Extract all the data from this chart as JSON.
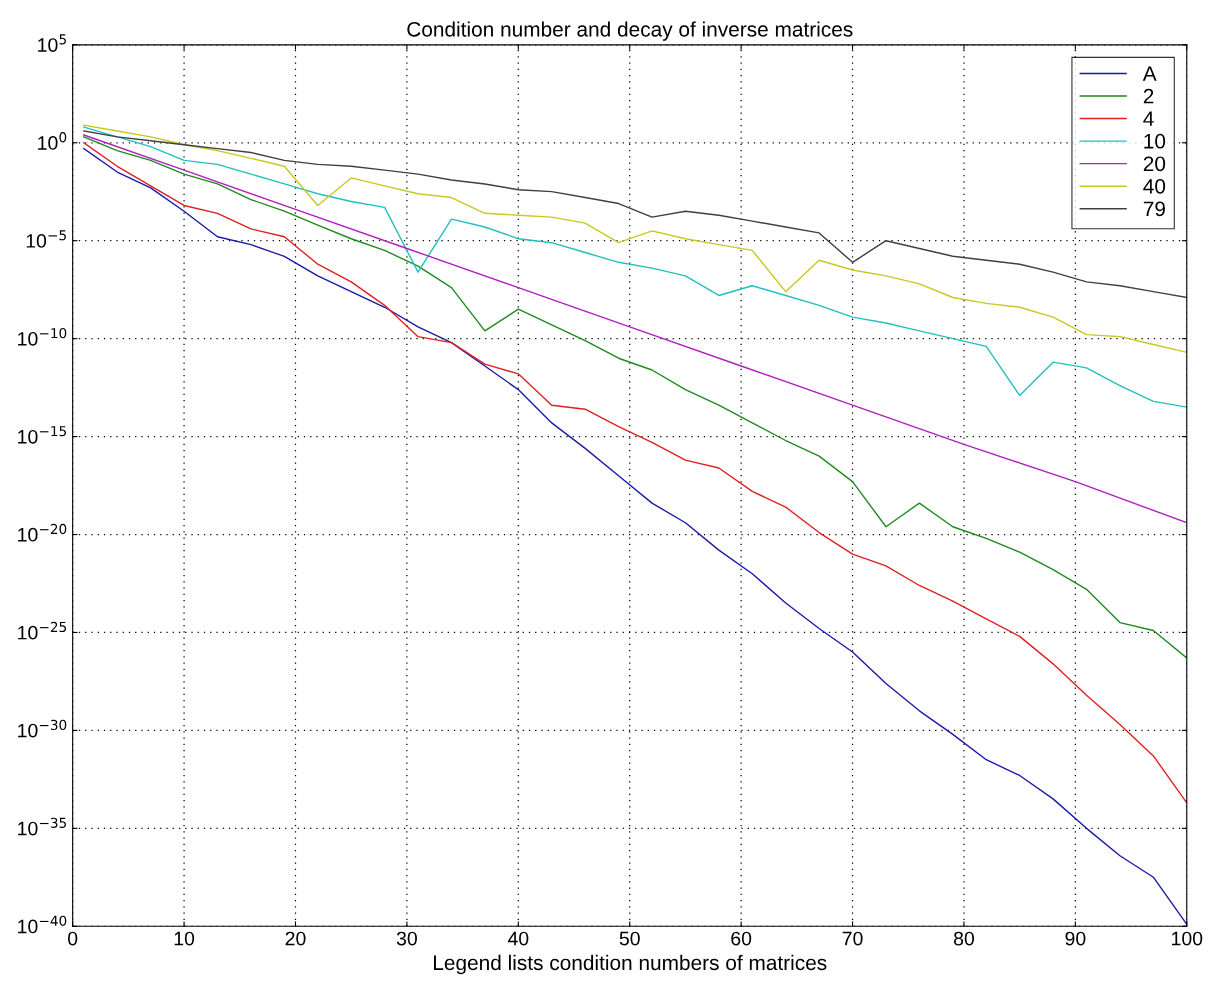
{
  "chart_data": {
    "type": "line",
    "title": "Condition number and decay of inverse matrices",
    "xlabel": "Legend lists condition numbers of matrices",
    "x": [
      1,
      4,
      7,
      10,
      13,
      16,
      19,
      22,
      25,
      28,
      31,
      34,
      37,
      40,
      43,
      46,
      49,
      52,
      55,
      58,
      61,
      64,
      67,
      70,
      73,
      76,
      79,
      82,
      85,
      88,
      91,
      94,
      97,
      100
    ],
    "series": [
      {
        "name": "A",
        "color": "#1a1aa8",
        "values": [
          0.5,
          0.032,
          0.005,
          0.00032,
          1.6e-05,
          6.3e-06,
          1.6e-06,
          1.6e-07,
          2.5e-08,
          4e-09,
          4e-10,
          6.3e-11,
          4e-12,
          2.5e-13,
          5e-15,
          2.5e-16,
          1e-17,
          4e-19,
          4e-20,
          1.6e-21,
          1e-22,
          3.2e-24,
          1.6e-25,
          1e-26,
          2.5e-28,
          1e-29,
          6.3e-31,
          3.2e-32,
          5e-33,
          3.2e-34,
          1e-35,
          4e-37,
          3.2e-38,
          1.26e-40
        ]
      },
      {
        "name": "2",
        "color": "#1f8a1f",
        "values": [
          2,
          0.4,
          0.126,
          0.025,
          0.0079,
          0.00126,
          0.00032,
          6.3e-05,
          1.26e-05,
          3.2e-06,
          5e-07,
          4e-08,
          2.5e-10,
          3.2e-09,
          5e-10,
          7.9e-11,
          1e-11,
          2.5e-12,
          2.5e-13,
          4e-14,
          5e-15,
          6.3e-16,
          1e-16,
          5e-18,
          2.5e-20,
          4e-19,
          2.5e-20,
          6.3e-21,
          1.26e-21,
          1.6e-22,
          1.6e-23,
          3.2e-25,
          1.26e-25,
          5e-27
        ]
      },
      {
        "name": "4",
        "color": "#e02020",
        "values": [
          1,
          0.063,
          0.0063,
          0.00063,
          0.00025,
          4e-05,
          1.6e-05,
          6.3e-07,
          7.9e-08,
          5e-09,
          1.26e-10,
          6.3e-11,
          5e-12,
          1.6e-12,
          4e-14,
          2.5e-14,
          3.2e-15,
          5e-16,
          6.3e-17,
          2.5e-17,
          1.6e-18,
          2.5e-19,
          1.26e-20,
          1e-21,
          2.5e-22,
          2.5e-23,
          4e-24,
          5e-25,
          6.3e-26,
          2.5e-27,
          6.3e-29,
          2e-30,
          5e-32,
          2e-34
        ]
      },
      {
        "name": "10",
        "color": "#20c0c0",
        "values": [
          6.3,
          2,
          0.63,
          0.126,
          0.079,
          0.025,
          0.0079,
          0.0025,
          0.001,
          0.0005,
          2.5e-07,
          0.000126,
          5e-05,
          1.26e-05,
          7.9e-06,
          2.5e-06,
          7.9e-07,
          4e-07,
          1.6e-07,
          1.6e-08,
          5e-08,
          1.6e-08,
          5e-09,
          1.26e-09,
          6.3e-10,
          2.5e-10,
          1e-10,
          4e-11,
          1.26e-13,
          6.3e-12,
          3.2e-12,
          4e-13,
          6.3e-14,
          3.2e-14
        ]
      },
      {
        "name": "20",
        "color": "#b020c0",
        "x": [
          1,
          10,
          20,
          30,
          40,
          50,
          60,
          70,
          80,
          90,
          100
        ],
        "values": [
          2.5,
          0.04,
          0.0004,
          4e-06,
          4e-08,
          4e-10,
          4e-12,
          4e-14,
          4e-16,
          5e-18,
          4e-20
        ]
      },
      {
        "name": "40",
        "color": "#c8c820",
        "values": [
          7.9,
          4,
          2,
          0.79,
          0.4,
          0.16,
          0.063,
          0.00063,
          0.016,
          0.0063,
          0.0025,
          0.0016,
          0.00025,
          0.0002,
          0.00016,
          7.9e-05,
          7.9e-06,
          3.2e-05,
          1.26e-05,
          6.3e-06,
          3.2e-06,
          2.5e-08,
          1e-06,
          3.2e-07,
          1.6e-07,
          6.3e-08,
          1.26e-08,
          6.3e-09,
          4e-09,
          1.26e-09,
          1.6e-10,
          1.26e-10,
          5e-11,
          2e-11
        ]
      },
      {
        "name": "79",
        "color": "#404040",
        "values": [
          4,
          2,
          1.26,
          0.79,
          0.5,
          0.32,
          0.126,
          0.079,
          0.063,
          0.04,
          0.025,
          0.0126,
          0.0079,
          0.004,
          0.0032,
          0.0016,
          0.00079,
          0.00016,
          0.00032,
          0.0002,
          0.0001,
          5e-05,
          2.5e-05,
          7.9e-07,
          1e-05,
          4e-06,
          1.6e-06,
          1e-06,
          6.3e-07,
          2.5e-07,
          7.9e-08,
          5e-08,
          2.5e-08,
          1.26e-08
        ]
      }
    ],
    "log": "y",
    "xlim": [
      0,
      100
    ],
    "xticks": [
      0,
      10,
      20,
      30,
      40,
      50,
      60,
      70,
      80,
      90,
      100
    ],
    "ylim": [
      1e-40,
      100000.0
    ],
    "yticks": [
      {
        "value": 1e-40,
        "label": "10$^{−40}$"
      },
      {
        "value": 1e-35,
        "label": "10$^{−35}$"
      },
      {
        "value": 1e-30,
        "label": "10$^{−30}$"
      },
      {
        "value": 1e-25,
        "label": "10$^{−25}$"
      },
      {
        "value": 1e-20,
        "label": "10$^{−20}$"
      },
      {
        "value": 1e-15,
        "label": "10$^{−15}$"
      },
      {
        "value": 1e-10,
        "label": "10$^{−10}$"
      },
      {
        "value": 1e-05,
        "label": "10$^{−5}$"
      },
      {
        "value": 1,
        "label": "10$^{0}$"
      },
      {
        "value": 100000.0,
        "label": "10$^{5}$"
      }
    ],
    "grid": true,
    "legend": "top right",
    "line_style": "solid",
    "marker": "none"
  }
}
